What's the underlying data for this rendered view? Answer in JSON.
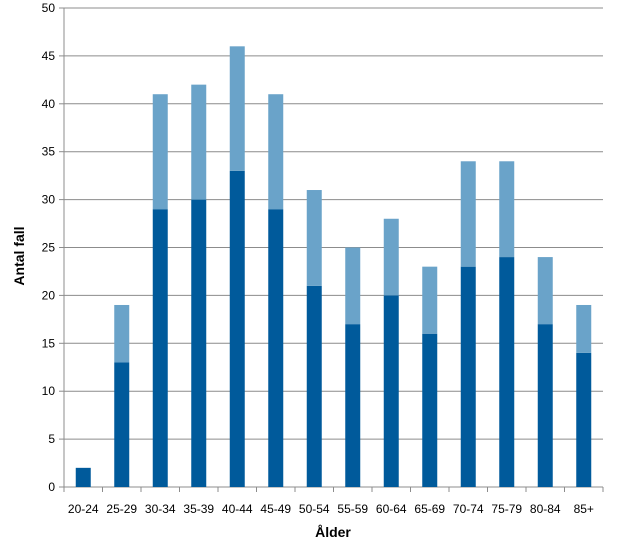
{
  "chart_data": {
    "type": "bar",
    "stacked": true,
    "xlabel": "Ålder",
    "ylabel": "Antal fall",
    "ylim": [
      0,
      50
    ],
    "ytick_step": 5,
    "grid": true,
    "categories": [
      "20-24",
      "25-29",
      "30-34",
      "35-39",
      "40-44",
      "45-49",
      "50-54",
      "55-59",
      "60-64",
      "65-69",
      "70-74",
      "75-79",
      "80-84",
      "85+"
    ],
    "series": [
      {
        "color": "#005A9B",
        "values": [
          2,
          13,
          29,
          30,
          33,
          29,
          21,
          17,
          20,
          16,
          23,
          24,
          17,
          14
        ]
      },
      {
        "color": "#6AA3C9",
        "values": [
          0,
          6,
          12,
          12,
          13,
          12,
          10,
          8,
          8,
          7,
          11,
          10,
          7,
          5
        ]
      }
    ]
  }
}
